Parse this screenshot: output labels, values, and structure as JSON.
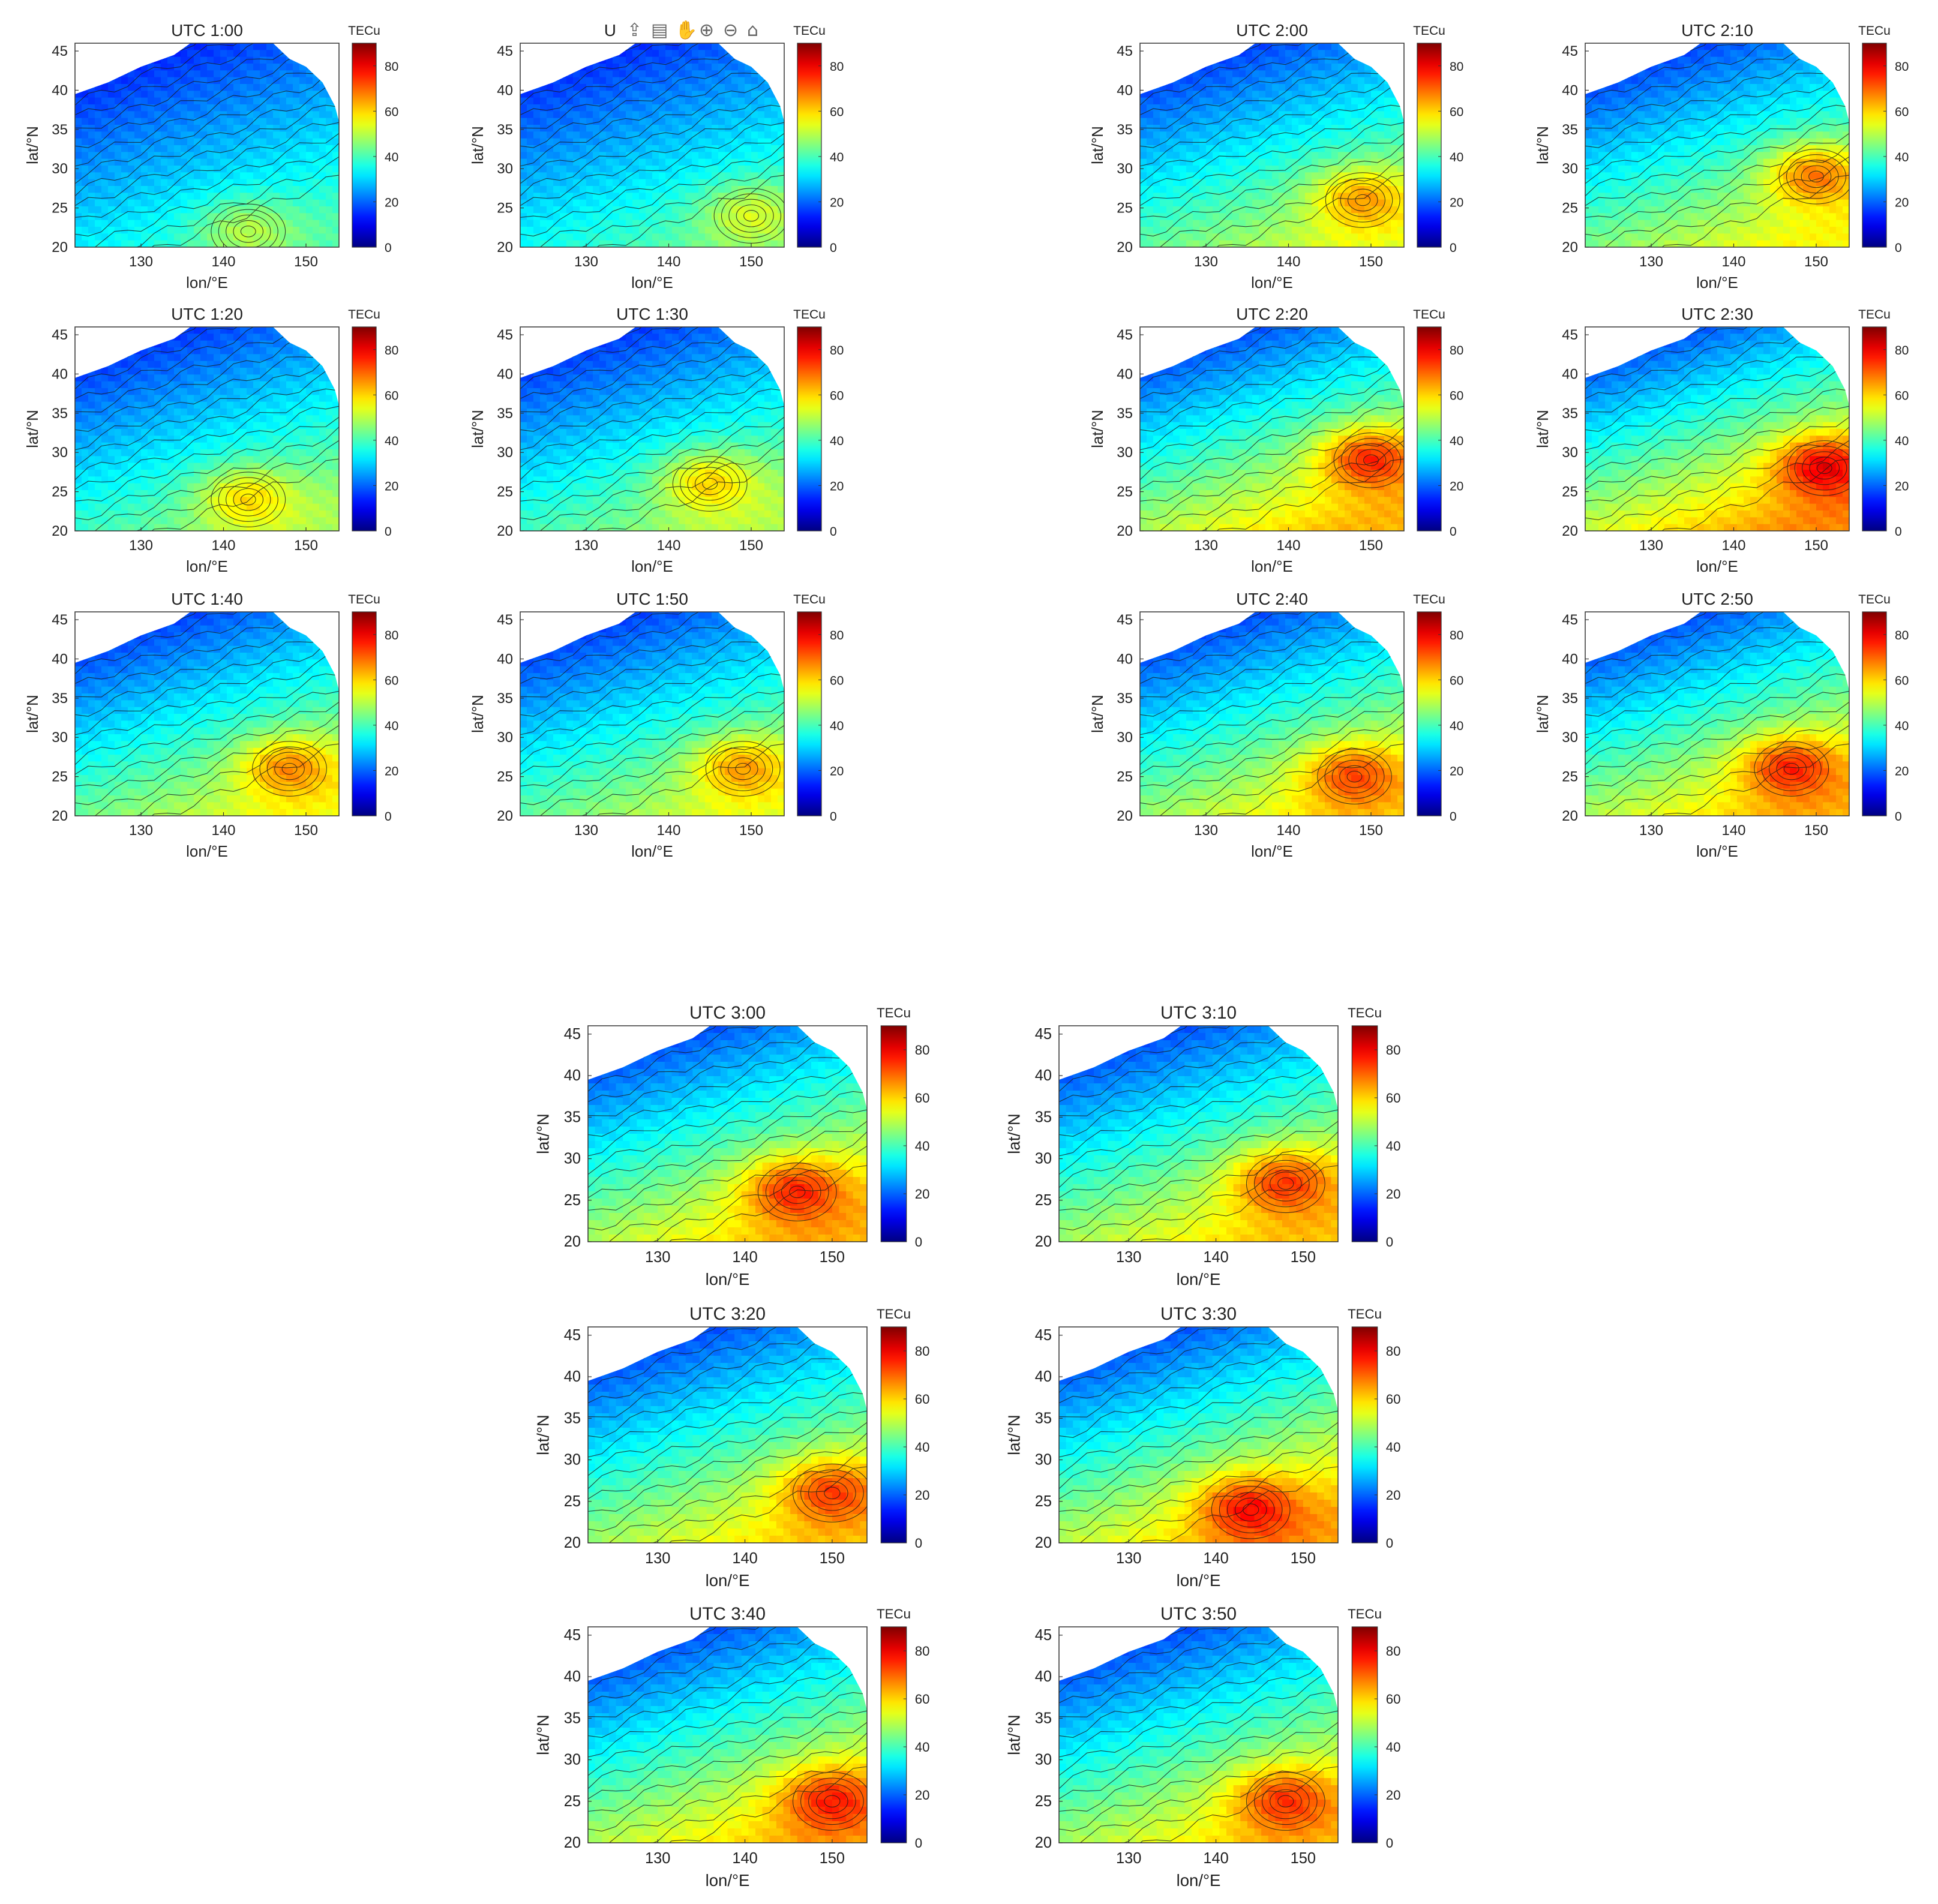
{
  "figure": {
    "colorbar_title": "TECu",
    "colorbar_ticks": [
      "0",
      "20",
      "40",
      "60",
      "80"
    ],
    "colorbar_range": [
      0,
      90
    ],
    "colormap": "jet",
    "x_axis_label": "lon/°E",
    "y_axis_label": "lat/°N",
    "x_ticks": [
      "130",
      "140",
      "150"
    ],
    "y_ticks": [
      "20",
      "25",
      "30",
      "35",
      "40",
      "45"
    ],
    "toolbar_text": "U",
    "toolbar_icons": [
      "export-icon",
      "brush-icon",
      "pan-icon",
      "zoom-in-icon",
      "zoom-out-icon",
      "home-icon"
    ]
  },
  "chart_data": [
    {
      "type": "heatmap",
      "title": "UTC 1:00",
      "xlim": [
        122,
        154
      ],
      "ylim": [
        20,
        46
      ],
      "peak": {
        "lon": 143,
        "lat": 22,
        "value": 52
      }
    },
    {
      "type": "heatmap",
      "title": "",
      "xlim": [
        122,
        154
      ],
      "ylim": [
        20,
        46
      ],
      "peak": {
        "lon": 150,
        "lat": 24,
        "value": 55
      }
    },
    {
      "type": "heatmap",
      "title": "UTC 1:20",
      "xlim": [
        122,
        154
      ],
      "ylim": [
        20,
        46
      ],
      "peak": {
        "lon": 143,
        "lat": 24,
        "value": 62
      }
    },
    {
      "type": "heatmap",
      "title": "UTC 1:30",
      "xlim": [
        122,
        154
      ],
      "ylim": [
        20,
        46
      ],
      "peak": {
        "lon": 145,
        "lat": 26,
        "value": 63
      }
    },
    {
      "type": "heatmap",
      "title": "UTC 1:40",
      "xlim": [
        122,
        154
      ],
      "ylim": [
        20,
        46
      ],
      "peak": {
        "lon": 148,
        "lat": 26,
        "value": 70
      }
    },
    {
      "type": "heatmap",
      "title": "UTC 1:50",
      "xlim": [
        122,
        154
      ],
      "ylim": [
        20,
        46
      ],
      "peak": {
        "lon": 149,
        "lat": 26,
        "value": 68
      }
    },
    {
      "type": "heatmap",
      "title": "UTC 2:00",
      "xlim": [
        122,
        154
      ],
      "ylim": [
        20,
        46
      ],
      "peak": {
        "lon": 149,
        "lat": 26,
        "value": 68
      }
    },
    {
      "type": "heatmap",
      "title": "UTC 2:10",
      "xlim": [
        122,
        154
      ],
      "ylim": [
        20,
        46
      ],
      "peak": {
        "lon": 150,
        "lat": 29,
        "value": 72
      }
    },
    {
      "type": "heatmap",
      "title": "UTC 2:20",
      "xlim": [
        122,
        154
      ],
      "ylim": [
        20,
        46
      ],
      "peak": {
        "lon": 150,
        "lat": 29,
        "value": 80
      }
    },
    {
      "type": "heatmap",
      "title": "UTC 2:30",
      "xlim": [
        122,
        154
      ],
      "ylim": [
        20,
        46
      ],
      "peak": {
        "lon": 151,
        "lat": 28,
        "value": 85
      }
    },
    {
      "type": "heatmap",
      "title": "UTC 2:40",
      "xlim": [
        122,
        154
      ],
      "ylim": [
        20,
        46
      ],
      "peak": {
        "lon": 148,
        "lat": 25,
        "value": 76
      }
    },
    {
      "type": "heatmap",
      "title": "UTC 2:50",
      "xlim": [
        122,
        154
      ],
      "ylim": [
        20,
        46
      ],
      "peak": {
        "lon": 147,
        "lat": 26,
        "value": 80
      }
    },
    {
      "type": "heatmap",
      "title": "UTC 3:00",
      "xlim": [
        122,
        154
      ],
      "ylim": [
        20,
        46
      ],
      "peak": {
        "lon": 146,
        "lat": 26,
        "value": 80
      }
    },
    {
      "type": "heatmap",
      "title": "UTC 3:10",
      "xlim": [
        122,
        154
      ],
      "ylim": [
        20,
        46
      ],
      "peak": {
        "lon": 148,
        "lat": 27,
        "value": 78
      }
    },
    {
      "type": "heatmap",
      "title": "UTC 3:20",
      "xlim": [
        122,
        154
      ],
      "ylim": [
        20,
        46
      ],
      "peak": {
        "lon": 150,
        "lat": 26,
        "value": 77
      }
    },
    {
      "type": "heatmap",
      "title": "UTC 3:30",
      "xlim": [
        122,
        154
      ],
      "ylim": [
        20,
        46
      ],
      "peak": {
        "lon": 144,
        "lat": 24,
        "value": 82
      }
    },
    {
      "type": "heatmap",
      "title": "UTC 3:40",
      "xlim": [
        122,
        154
      ],
      "ylim": [
        20,
        46
      ],
      "peak": {
        "lon": 150,
        "lat": 25,
        "value": 80
      }
    },
    {
      "type": "heatmap",
      "title": "UTC 3:50",
      "xlim": [
        122,
        154
      ],
      "ylim": [
        20,
        46
      ],
      "peak": {
        "lon": 148,
        "lat": 25,
        "value": 78
      }
    }
  ]
}
